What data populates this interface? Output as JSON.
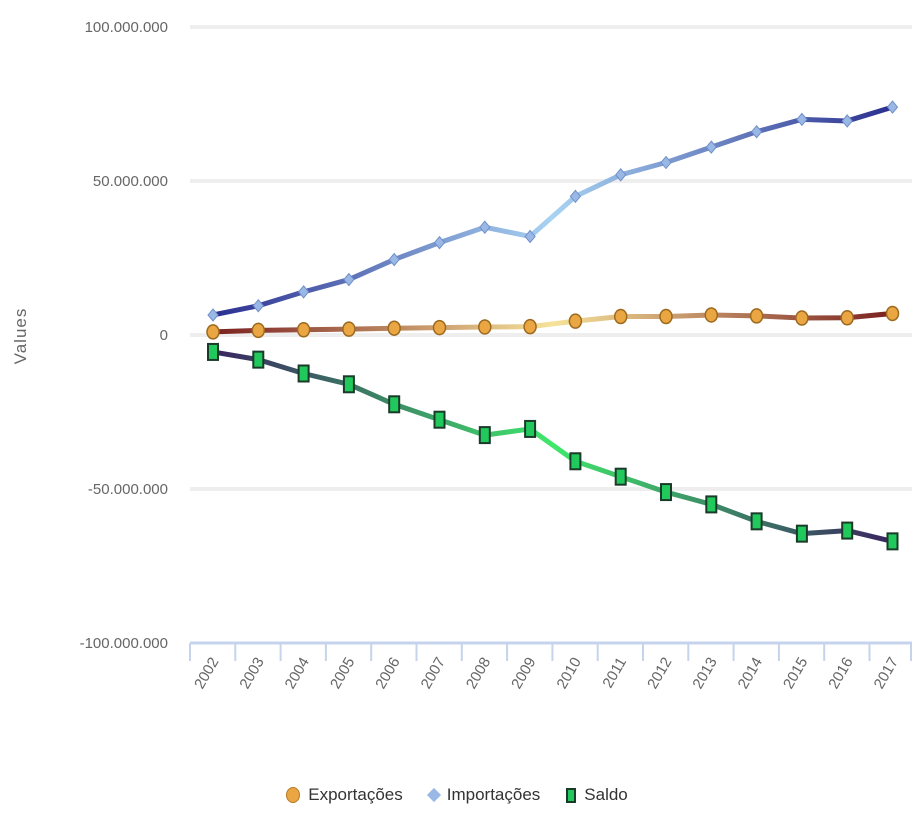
{
  "chart_data": {
    "type": "line",
    "title": "",
    "xlabel": "",
    "ylabel": "Values",
    "categories": [
      "2002",
      "2003",
      "2004",
      "2005",
      "2006",
      "2007",
      "2008",
      "2009",
      "2010",
      "2011",
      "2012",
      "2013",
      "2014",
      "2015",
      "2016",
      "2017"
    ],
    "yticks": [
      "100.000.000",
      "50.000.000",
      "0",
      "-50.000.000",
      "-100.000.000"
    ],
    "ytick_values": [
      100000000,
      50000000,
      0,
      -50000000,
      -100000000
    ],
    "ylim": [
      -100000000,
      100000000
    ],
    "grid": true,
    "legend_position": "bottom",
    "series": [
      {
        "name": "Exportações",
        "color": "#e9a642",
        "line_colors": [
          "#7a2020",
          "#f6e39a"
        ],
        "marker": "circle",
        "values": [
          1000000,
          1500000,
          1700000,
          1900000,
          2200000,
          2400000,
          2600000,
          2700000,
          4500000,
          6000000,
          6000000,
          6500000,
          6200000,
          5500000,
          5600000,
          7000000
        ]
      },
      {
        "name": "Importações",
        "color": "#9ab8e6",
        "line_colors": [
          "#2b2f8f",
          "#a8d3f2"
        ],
        "marker": "diamond",
        "values": [
          6500000,
          9500000,
          14000000,
          18000000,
          24500000,
          30000000,
          35000000,
          32000000,
          45000000,
          52000000,
          56000000,
          61000000,
          66000000,
          70000000,
          69500000,
          74000000
        ]
      },
      {
        "name": "Saldo",
        "color": "#21c95c",
        "line_colors": [
          "#3a2460",
          "#3fe86b"
        ],
        "marker": "square",
        "values": [
          -5500000,
          -8000000,
          -12500000,
          -16000000,
          -22500000,
          -27500000,
          -32500000,
          -30500000,
          -41000000,
          -46000000,
          -51000000,
          -55000000,
          -60500000,
          -64500000,
          -63500000,
          -67000000
        ]
      }
    ]
  },
  "legend": {
    "exp_label": "Exportações",
    "imp_label": "Importações",
    "sal_label": "Saldo"
  }
}
